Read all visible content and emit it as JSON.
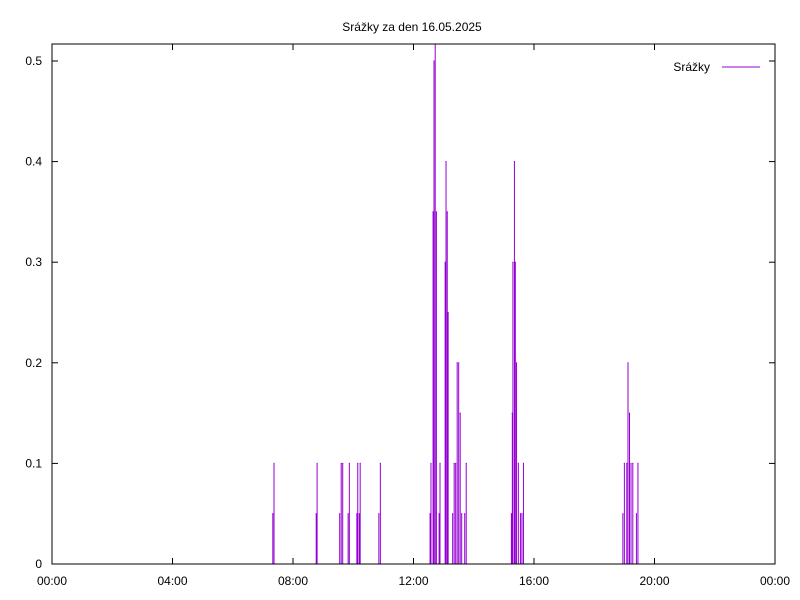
{
  "chart_data": {
    "type": "line",
    "title": "Srážky za den 16.05.2025",
    "xlabel": "",
    "ylabel": "",
    "x_unit": "hours",
    "xlim": [
      0,
      24
    ],
    "ylim": [
      0,
      0.5
    ],
    "xticks": [
      {
        "value": 0,
        "label": "00:00"
      },
      {
        "value": 4,
        "label": "04:00"
      },
      {
        "value": 8,
        "label": "08:00"
      },
      {
        "value": 12,
        "label": "12:00"
      },
      {
        "value": 16,
        "label": "16:00"
      },
      {
        "value": 20,
        "label": "20:00"
      },
      {
        "value": 24,
        "label": "00:00"
      }
    ],
    "yticks": [
      {
        "value": 0,
        "label": "0"
      },
      {
        "value": 0.1,
        "label": "0.1"
      },
      {
        "value": 0.2,
        "label": "0.2"
      },
      {
        "value": 0.3,
        "label": "0.3"
      },
      {
        "value": 0.4,
        "label": "0.4"
      },
      {
        "value": 0.5,
        "label": "0.5"
      }
    ],
    "grid": false,
    "legend_position": "top-right",
    "series": [
      {
        "name": "Srážky",
        "color": "#9400d3",
        "points": [
          [
            7.33,
            0.05
          ],
          [
            7.37,
            0.1
          ],
          [
            8.77,
            0.05
          ],
          [
            8.8,
            0.1
          ],
          [
            9.55,
            0.05
          ],
          [
            9.6,
            0.1
          ],
          [
            9.65,
            0.1
          ],
          [
            9.83,
            0.05
          ],
          [
            9.87,
            0.1
          ],
          [
            10.12,
            0.05
          ],
          [
            10.15,
            0.1
          ],
          [
            10.2,
            0.05
          ],
          [
            10.23,
            0.1
          ],
          [
            10.85,
            0.05
          ],
          [
            10.9,
            0.1
          ],
          [
            12.55,
            0.05
          ],
          [
            12.58,
            0.1
          ],
          [
            12.65,
            0.35
          ],
          [
            12.68,
            0.5
          ],
          [
            12.72,
            0.55
          ],
          [
            12.76,
            0.35
          ],
          [
            12.85,
            0.05
          ],
          [
            12.88,
            0.1
          ],
          [
            13.05,
            0.3
          ],
          [
            13.08,
            0.4
          ],
          [
            13.12,
            0.35
          ],
          [
            13.15,
            0.25
          ],
          [
            13.3,
            0.05
          ],
          [
            13.35,
            0.1
          ],
          [
            13.4,
            0.1
          ],
          [
            13.45,
            0.2
          ],
          [
            13.5,
            0.2
          ],
          [
            13.55,
            0.15
          ],
          [
            13.6,
            0.05
          ],
          [
            13.7,
            0.05
          ],
          [
            13.75,
            0.1
          ],
          [
            15.25,
            0.05
          ],
          [
            15.28,
            0.15
          ],
          [
            15.3,
            0.3
          ],
          [
            15.35,
            0.4
          ],
          [
            15.38,
            0.3
          ],
          [
            15.42,
            0.2
          ],
          [
            15.48,
            0.1
          ],
          [
            15.55,
            0.05
          ],
          [
            15.6,
            0.05
          ],
          [
            15.65,
            0.1
          ],
          [
            18.95,
            0.05
          ],
          [
            19.0,
            0.1
          ],
          [
            19.08,
            0.1
          ],
          [
            19.12,
            0.2
          ],
          [
            19.17,
            0.15
          ],
          [
            19.22,
            0.1
          ],
          [
            19.28,
            0.1
          ],
          [
            19.4,
            0.05
          ],
          [
            19.45,
            0.1
          ]
        ]
      }
    ]
  }
}
